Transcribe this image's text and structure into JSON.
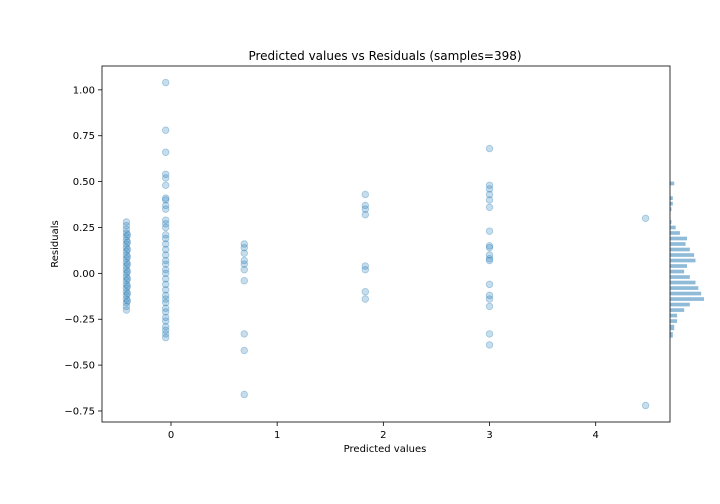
{
  "chart_data": {
    "type": "scatter",
    "title": "Predicted values vs Residuals (samples=398)",
    "xlabel": "Predicted values",
    "ylabel": "Residuals",
    "xlim": [
      -0.65,
      4.7
    ],
    "ylim": [
      -0.81,
      1.13
    ],
    "x_ticks": [
      0,
      1,
      2,
      3,
      4
    ],
    "y_ticks": [
      -0.75,
      -0.5,
      -0.25,
      0.0,
      0.25,
      0.5,
      0.75,
      1.0
    ],
    "y_tick_labels": [
      "−0.75",
      "−0.50",
      "−0.25",
      "0.00",
      "0.25",
      "0.50",
      "0.75",
      "1.00"
    ],
    "grid": false,
    "marker_color": "#1f77b4",
    "marker_alpha": 0.25,
    "histogram_color": "#1f77b4",
    "series": [
      {
        "points": [
          [
            -0.42,
            0.28
          ],
          [
            -0.42,
            0.26
          ],
          [
            -0.42,
            0.24
          ],
          [
            -0.42,
            0.22
          ],
          [
            -0.42,
            0.2
          ],
          [
            -0.42,
            0.18
          ],
          [
            -0.42,
            0.16
          ],
          [
            -0.42,
            0.14
          ],
          [
            -0.42,
            0.12
          ],
          [
            -0.42,
            0.1
          ],
          [
            -0.42,
            0.08
          ],
          [
            -0.42,
            0.06
          ],
          [
            -0.42,
            0.04
          ],
          [
            -0.42,
            0.02
          ],
          [
            -0.42,
            0.0
          ],
          [
            -0.42,
            -0.02
          ],
          [
            -0.42,
            -0.04
          ],
          [
            -0.42,
            -0.06
          ],
          [
            -0.42,
            -0.08
          ],
          [
            -0.42,
            -0.1
          ],
          [
            -0.42,
            -0.12
          ],
          [
            -0.42,
            -0.14
          ],
          [
            -0.42,
            -0.16
          ],
          [
            -0.42,
            -0.18
          ],
          [
            -0.42,
            -0.2
          ],
          [
            -0.41,
            0.21
          ],
          [
            -0.41,
            0.17
          ],
          [
            -0.41,
            0.13
          ],
          [
            -0.41,
            0.09
          ],
          [
            -0.41,
            0.05
          ],
          [
            -0.41,
            0.01
          ],
          [
            -0.41,
            -0.03
          ],
          [
            -0.41,
            -0.07
          ],
          [
            -0.41,
            -0.11
          ],
          [
            -0.41,
            -0.15
          ],
          [
            -0.05,
            1.04
          ],
          [
            -0.05,
            0.78
          ],
          [
            -0.05,
            0.66
          ],
          [
            -0.05,
            0.54
          ],
          [
            -0.05,
            0.52
          ],
          [
            -0.05,
            0.48
          ],
          [
            -0.05,
            0.41
          ],
          [
            -0.05,
            0.4
          ],
          [
            -0.05,
            0.37
          ],
          [
            -0.05,
            0.35
          ],
          [
            -0.05,
            0.29
          ],
          [
            -0.05,
            0.27
          ],
          [
            -0.05,
            0.25
          ],
          [
            -0.05,
            0.21
          ],
          [
            -0.05,
            0.19
          ],
          [
            -0.05,
            0.16
          ],
          [
            -0.05,
            0.13
          ],
          [
            -0.05,
            0.1
          ],
          [
            -0.05,
            0.07
          ],
          [
            -0.05,
            0.05
          ],
          [
            -0.05,
            0.02
          ],
          [
            -0.05,
            0.0
          ],
          [
            -0.05,
            -0.03
          ],
          [
            -0.05,
            -0.06
          ],
          [
            -0.05,
            -0.09
          ],
          [
            -0.05,
            -0.12
          ],
          [
            -0.05,
            -0.14
          ],
          [
            -0.05,
            -0.16
          ],
          [
            -0.05,
            -0.19
          ],
          [
            -0.05,
            -0.21
          ],
          [
            -0.05,
            -0.24
          ],
          [
            -0.05,
            -0.26
          ],
          [
            -0.05,
            -0.29
          ],
          [
            -0.05,
            -0.31
          ],
          [
            -0.05,
            -0.33
          ],
          [
            -0.05,
            -0.35
          ],
          [
            0.69,
            0.16
          ],
          [
            0.69,
            0.14
          ],
          [
            0.69,
            0.11
          ],
          [
            0.69,
            0.07
          ],
          [
            0.69,
            0.05
          ],
          [
            0.69,
            0.02
          ],
          [
            0.69,
            -0.04
          ],
          [
            0.69,
            -0.33
          ],
          [
            0.69,
            -0.42
          ],
          [
            0.69,
            -0.66
          ],
          [
            1.83,
            0.43
          ],
          [
            1.83,
            0.37
          ],
          [
            1.83,
            0.35
          ],
          [
            1.83,
            0.32
          ],
          [
            1.83,
            0.04
          ],
          [
            1.83,
            0.02
          ],
          [
            1.83,
            -0.1
          ],
          [
            1.83,
            -0.14
          ],
          [
            3.0,
            0.68
          ],
          [
            3.0,
            0.48
          ],
          [
            3.0,
            0.46
          ],
          [
            3.0,
            0.43
          ],
          [
            3.0,
            0.4
          ],
          [
            3.0,
            0.36
          ],
          [
            3.0,
            0.23
          ],
          [
            3.0,
            0.15
          ],
          [
            3.0,
            0.14
          ],
          [
            3.0,
            0.1
          ],
          [
            3.0,
            0.08
          ],
          [
            3.0,
            0.07
          ],
          [
            3.0,
            -0.06
          ],
          [
            3.0,
            -0.12
          ],
          [
            3.0,
            -0.14
          ],
          [
            3.0,
            -0.18
          ],
          [
            3.0,
            -0.33
          ],
          [
            3.0,
            -0.39
          ],
          [
            4.47,
            0.3
          ],
          [
            4.47,
            -0.72
          ]
        ]
      }
    ],
    "histogram": {
      "bins": [
        [
          0.48,
          0.5,
          3
        ],
        [
          0.4,
          0.42,
          2
        ],
        [
          0.37,
          0.39,
          2
        ],
        [
          0.34,
          0.36,
          1
        ],
        [
          0.27,
          0.29,
          1
        ],
        [
          0.24,
          0.26,
          4
        ],
        [
          0.21,
          0.23,
          7
        ],
        [
          0.18,
          0.2,
          12
        ],
        [
          0.15,
          0.17,
          11
        ],
        [
          0.12,
          0.14,
          14
        ],
        [
          0.09,
          0.11,
          17
        ],
        [
          0.06,
          0.08,
          18
        ],
        [
          0.03,
          0.05,
          12
        ],
        [
          0.0,
          0.02,
          10
        ],
        [
          -0.03,
          -0.01,
          14
        ],
        [
          -0.06,
          -0.04,
          18
        ],
        [
          -0.09,
          -0.07,
          20
        ],
        [
          -0.12,
          -0.1,
          22
        ],
        [
          -0.15,
          -0.13,
          24
        ],
        [
          -0.18,
          -0.16,
          14
        ],
        [
          -0.21,
          -0.19,
          10
        ],
        [
          -0.24,
          -0.22,
          5
        ],
        [
          -0.27,
          -0.25,
          5
        ],
        [
          -0.31,
          -0.28,
          3
        ],
        [
          -0.35,
          -0.32,
          2
        ]
      ]
    }
  }
}
